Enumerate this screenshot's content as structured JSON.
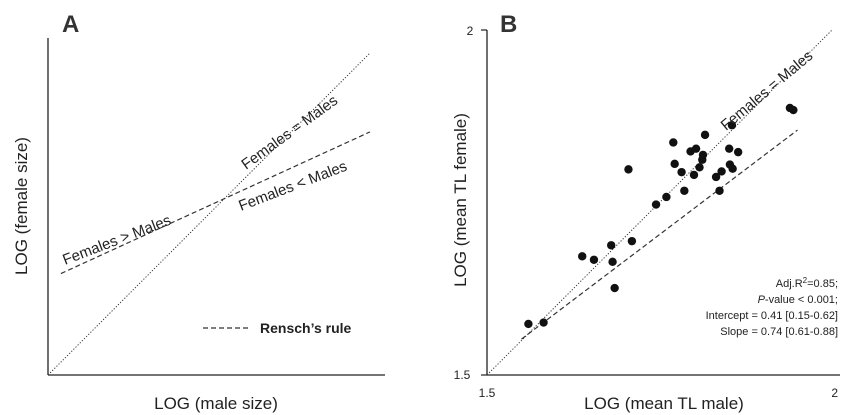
{
  "chart_data": [
    {
      "type": "line",
      "panel": "A",
      "xlabel": "LOG (male size)",
      "ylabel": "LOG (female size)",
      "series": [
        {
          "label": "Females = Males",
          "style": "dotted",
          "x": [
            0,
            1
          ],
          "y": [
            0,
            1
          ]
        },
        {
          "style": "dashed",
          "x": [
            0.04,
            1
          ],
          "y": [
            0.315,
            0.755
          ]
        }
      ],
      "annotations": [
        "Females = Males",
        "Females < Males",
        "Females > Males"
      ],
      "legend": {
        "label": "Rensch’s rule",
        "style": "dashed",
        "position": "bottom-right"
      }
    },
    {
      "type": "scatter",
      "panel": "B",
      "xlabel": "LOG (mean TL male)",
      "ylabel": "LOG (mean TL female)",
      "xlim": [
        1.5,
        2
      ],
      "ylim": [
        1.5,
        2
      ],
      "x_ticks": [
        "1.5",
        "2"
      ],
      "y_ticks": [
        "1.5",
        "2"
      ],
      "points": [
        [
          1.56,
          1.574
        ],
        [
          1.582,
          1.576
        ],
        [
          1.638,
          1.672
        ],
        [
          1.655,
          1.667
        ],
        [
          1.682,
          1.664
        ],
        [
          1.68,
          1.688
        ],
        [
          1.685,
          1.626
        ],
        [
          1.71,
          1.694
        ],
        [
          1.705,
          1.798
        ],
        [
          1.745,
          1.747
        ],
        [
          1.76,
          1.758
        ],
        [
          1.772,
          1.806
        ],
        [
          1.77,
          1.837
        ],
        [
          1.782,
          1.794
        ],
        [
          1.786,
          1.767
        ],
        [
          1.795,
          1.824
        ],
        [
          1.8,
          1.79
        ],
        [
          1.803,
          1.828
        ],
        [
          1.808,
          1.801
        ],
        [
          1.812,
          1.812
        ],
        [
          1.813,
          1.819
        ],
        [
          1.816,
          1.848
        ],
        [
          1.832,
          1.787
        ],
        [
          1.837,
          1.767
        ],
        [
          1.84,
          1.795
        ],
        [
          1.851,
          1.828
        ],
        [
          1.852,
          1.805
        ],
        [
          1.855,
          1.862
        ],
        [
          1.856,
          1.799
        ],
        [
          1.864,
          1.823
        ],
        [
          1.939,
          1.887
        ],
        [
          1.944,
          1.884
        ]
      ],
      "lines": [
        {
          "label": "Females = Males",
          "style": "dotted",
          "x": [
            1.5,
            2
          ],
          "y": [
            1.5,
            2
          ]
        },
        {
          "style": "dashed",
          "x": [
            1.55,
            1.95
          ],
          "y": [
            1.552,
            1.855
          ]
        }
      ],
      "stats": [
        {
          "pre": "Adj.R",
          "sup": "2",
          "post": "=0.85;"
        },
        {
          "italic": "P",
          "post": "-value < 0.001;"
        },
        {
          "post": "Intercept = 0.41 [0.15-0.62]"
        },
        {
          "post": "Slope = 0.74 [0.61-0.88]"
        }
      ]
    }
  ]
}
